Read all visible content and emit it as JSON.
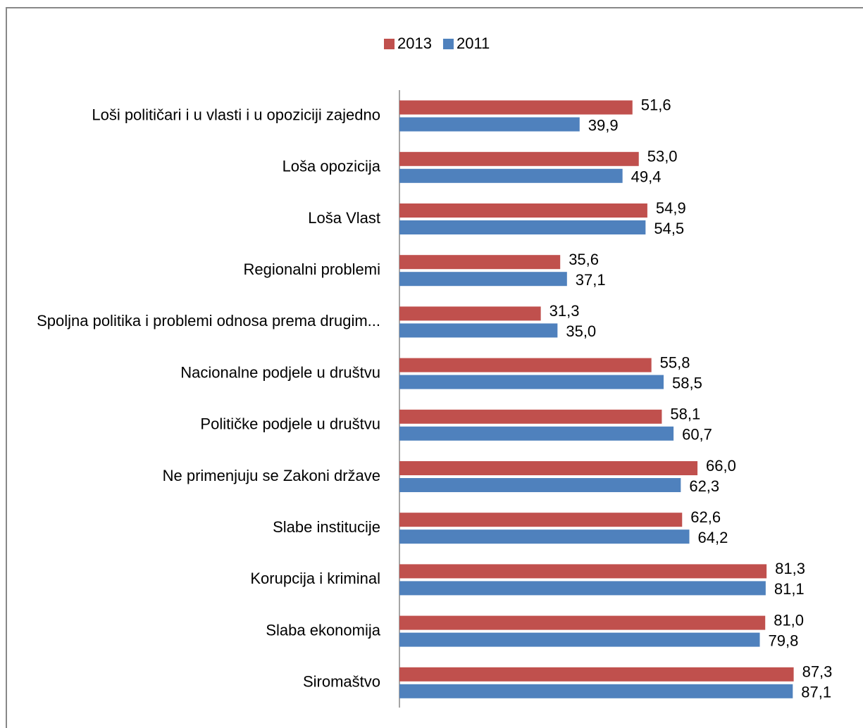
{
  "chart_data": {
    "type": "hbar",
    "categories": [
      "Loši političari i u vlasti i u opoziciji zajedno",
      "Loša opozicija",
      "Loša Vlast",
      "Regionalni problemi",
      "Spoljna politika i problemi odnosa prema drugim...",
      "Nacionalne podjele u društvu",
      "Političke podjele u društvu",
      "Ne primenjuju se Zakoni države",
      "Slabe institucije",
      "Korupcija i kriminal",
      "Slaba ekonomija",
      "Siromaštvo"
    ],
    "series": [
      {
        "name": "2013",
        "color": "#c0504d",
        "values": [
          51.6,
          53.0,
          54.9,
          35.6,
          31.3,
          55.8,
          58.1,
          66.0,
          62.6,
          81.3,
          81.0,
          87.3
        ],
        "value_labels": [
          "51,6",
          "53,0",
          "54,9",
          "35,6",
          "31,3",
          "55,8",
          "58,1",
          "66,0",
          "62,6",
          "81,3",
          "81,0",
          "87,3"
        ]
      },
      {
        "name": "2011",
        "color": "#4f81bd",
        "values": [
          39.9,
          49.4,
          54.5,
          37.1,
          35.0,
          58.5,
          60.7,
          62.3,
          64.2,
          81.1,
          79.8,
          87.1
        ],
        "value_labels": [
          "39,9",
          "49,4",
          "54,5",
          "37,1",
          "35,0",
          "58,5",
          "60,7",
          "62,3",
          "64,2",
          "81,1",
          "79,8",
          "87,1"
        ]
      }
    ],
    "legend": "top"
  }
}
